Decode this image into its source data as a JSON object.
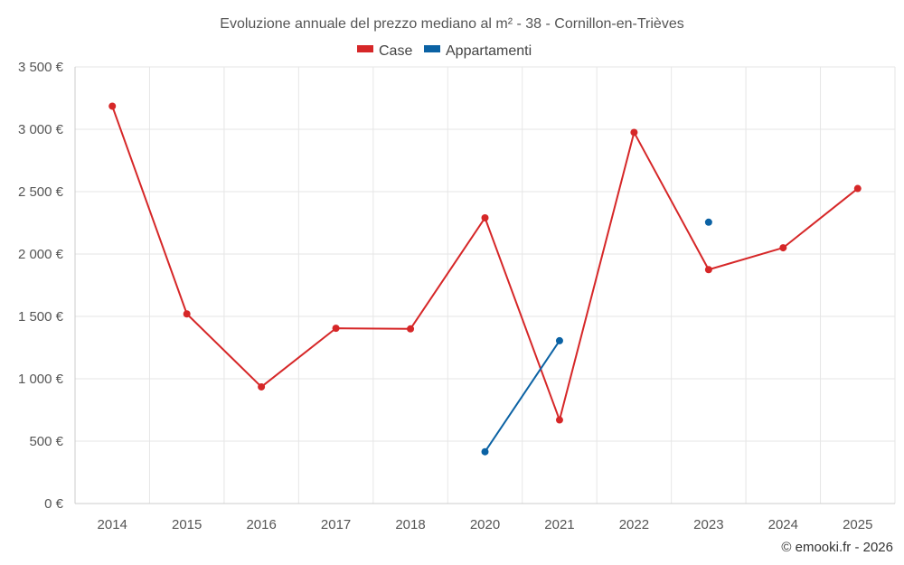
{
  "chart_data": {
    "type": "line",
    "title": "Evoluzione annuale del prezzo mediano al m² - 38 - Cornillon-en-Trièves",
    "categories": [
      "2014",
      "2015",
      "2016",
      "2017",
      "2018",
      "2020",
      "2021",
      "2022",
      "2023",
      "2024",
      "2025"
    ],
    "y_ticks": [
      "0 €",
      "500 €",
      "1 000 €",
      "1 500 €",
      "2 000 €",
      "2 500 €",
      "3 000 €",
      "3 500 €"
    ],
    "ylim": [
      0,
      3500
    ],
    "grid": true,
    "legend_position": "top-center",
    "series": [
      {
        "name": "Case",
        "color": "#d62728",
        "values": [
          3185,
          1520,
          935,
          1405,
          1400,
          2290,
          670,
          2975,
          1875,
          2050,
          2525
        ]
      },
      {
        "name": "Appartamenti",
        "color": "#0b62a4",
        "values": [
          null,
          null,
          null,
          null,
          null,
          415,
          1305,
          null,
          2255,
          null,
          null
        ]
      }
    ],
    "credit": "© emooki.fr - 2026"
  }
}
